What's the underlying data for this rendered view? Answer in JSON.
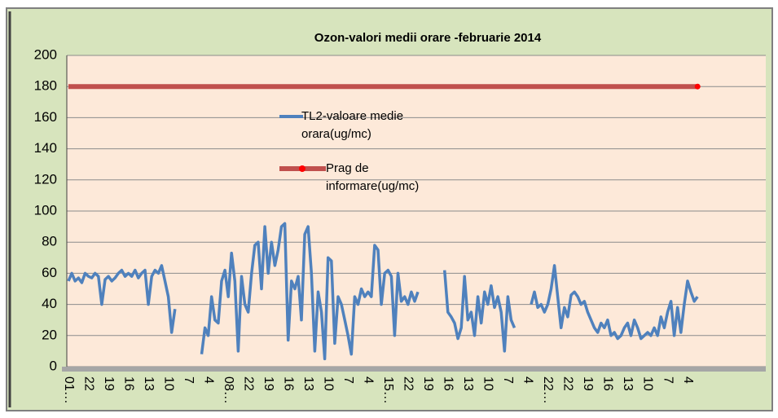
{
  "chart_data": {
    "type": "line",
    "title": "Ozon-valori medii orare -februarie 2014",
    "categories": [
      "01…",
      null,
      null,
      null,
      null,
      null,
      "22",
      null,
      null,
      null,
      null,
      null,
      "19",
      null,
      null,
      null,
      null,
      null,
      "16",
      null,
      null,
      null,
      null,
      null,
      "13",
      null,
      null,
      null,
      null,
      null,
      "10",
      null,
      null,
      null,
      null,
      null,
      "7",
      null,
      null,
      null,
      null,
      null,
      "4",
      null,
      null,
      null,
      null,
      null,
      "08…",
      null,
      null,
      null,
      null,
      null,
      "22",
      null,
      null,
      null,
      null,
      null,
      "19",
      null,
      null,
      null,
      null,
      null,
      "16",
      null,
      null,
      null,
      null,
      null,
      "13",
      null,
      null,
      null,
      null,
      null,
      "10",
      null,
      null,
      null,
      null,
      null,
      "7",
      null,
      null,
      null,
      null,
      null,
      "4",
      null,
      null,
      null,
      null,
      null,
      "15…",
      null,
      null,
      null,
      null,
      null,
      "22",
      null,
      null,
      null,
      null,
      null,
      "19",
      null,
      null,
      null,
      null,
      null,
      "16",
      null,
      null,
      null,
      null,
      null,
      "13",
      null,
      null,
      null,
      null,
      null,
      "10",
      null,
      null,
      null,
      null,
      null,
      "7",
      null,
      null,
      null,
      null,
      null,
      "4",
      null,
      null,
      null,
      null,
      null,
      "22…",
      null,
      null,
      null,
      null,
      null,
      "22",
      null,
      null,
      null,
      null,
      null,
      "19",
      null,
      null,
      null,
      null,
      null,
      "16",
      null,
      null,
      null,
      null,
      null,
      "13",
      null,
      null,
      null,
      null,
      null,
      "10",
      null,
      null,
      null,
      null,
      null,
      "7",
      null,
      null,
      null,
      null,
      null,
      "4",
      null,
      null,
      null,
      null,
      null,
      null,
      null,
      null,
      null,
      null,
      null,
      null,
      null,
      null,
      null,
      null,
      null,
      null,
      null,
      null,
      null,
      null,
      null
    ],
    "series": [
      {
        "name": "TL2-valoare medie orara(ug/mc)",
        "color": "#4f81bd",
        "values": [
          55,
          60,
          55,
          57,
          54,
          60,
          58,
          57,
          60,
          58,
          40,
          56,
          58,
          55,
          57,
          60,
          62,
          58,
          60,
          58,
          62,
          57,
          60,
          62,
          40,
          58,
          62,
          60,
          65,
          55,
          45,
          22,
          37,
          null,
          null,
          null,
          null,
          null,
          null,
          null,
          8,
          25,
          20,
          45,
          30,
          28,
          55,
          62,
          45,
          73,
          55,
          10,
          58,
          40,
          35,
          60,
          78,
          80,
          50,
          90,
          60,
          80,
          65,
          75,
          90,
          92,
          17,
          55,
          50,
          58,
          30,
          85,
          90,
          60,
          10,
          48,
          35,
          5,
          70,
          68,
          15,
          45,
          40,
          30,
          20,
          8,
          45,
          40,
          50,
          45,
          48,
          45,
          78,
          75,
          40,
          60,
          62,
          58,
          20,
          60,
          42,
          45,
          40,
          48,
          42,
          48,
          null,
          null,
          null,
          null,
          null,
          null,
          null,
          62,
          35,
          32,
          28,
          18,
          25,
          58,
          30,
          35,
          20,
          45,
          28,
          48,
          40,
          52,
          38,
          45,
          35,
          10,
          45,
          30,
          25,
          null,
          null,
          null,
          null,
          40,
          48,
          38,
          40,
          35,
          40,
          50,
          65,
          45,
          25,
          38,
          32,
          46,
          48,
          45,
          40,
          42,
          35,
          30,
          25,
          22,
          28,
          25,
          30,
          20,
          22,
          18,
          20,
          25,
          28,
          20,
          30,
          25,
          18,
          20,
          22,
          20,
          25,
          20,
          32,
          25,
          35,
          42,
          20,
          38,
          22,
          40,
          55,
          48,
          42,
          45,
          null,
          null,
          null,
          null,
          null,
          null,
          null,
          null,
          null,
          null,
          null,
          null,
          null,
          null,
          null,
          null,
          null,
          null,
          null,
          null
        ]
      },
      {
        "name": "Prag de informare(ug/mc)",
        "color": "#c0504d",
        "values": [
          180,
          180,
          180,
          180,
          180,
          180,
          180,
          180,
          180,
          180,
          180,
          180,
          180,
          180,
          180,
          180,
          180,
          180,
          180,
          180,
          180,
          180,
          180,
          180,
          180,
          180,
          180,
          180,
          180,
          180,
          180,
          180,
          180,
          180,
          180,
          180,
          180,
          180,
          180,
          180,
          180,
          180,
          180,
          180,
          180,
          180,
          180,
          180,
          180,
          180,
          180,
          180,
          180,
          180,
          180,
          180,
          180,
          180,
          180,
          180,
          180,
          180,
          180,
          180,
          180,
          180,
          180,
          180,
          180,
          180,
          180,
          180,
          180,
          180,
          180,
          180,
          180,
          180,
          180,
          180,
          180,
          180,
          180,
          180,
          180,
          180,
          180,
          180,
          180,
          180,
          180,
          180,
          180,
          180,
          180,
          180,
          180,
          180,
          180,
          180,
          180,
          180,
          180,
          180,
          180,
          180,
          180,
          180,
          180,
          180,
          180,
          180,
          180,
          180,
          180,
          180,
          180,
          180,
          180,
          180,
          180,
          180,
          180,
          180,
          180,
          180,
          180,
          180,
          180,
          180,
          180,
          180,
          180,
          180,
          180,
          180,
          180,
          180,
          180,
          180,
          180,
          180,
          180,
          180,
          180,
          180,
          180,
          180,
          180,
          180,
          180,
          180,
          180,
          180,
          180,
          180,
          180,
          180,
          180,
          180,
          180,
          180,
          180,
          180,
          180,
          180,
          180,
          180,
          180,
          180,
          180,
          180,
          180,
          180,
          180,
          180,
          180,
          180,
          180,
          180,
          180,
          180,
          180,
          180,
          180,
          180,
          180,
          180,
          180,
          180,
          null,
          null,
          null,
          null,
          null,
          null,
          null,
          null,
          null,
          null,
          null,
          null,
          null,
          null,
          null,
          null,
          null,
          null,
          null,
          null
        ]
      }
    ],
    "ylim": [
      0,
      200
    ],
    "yticks": [
      0,
      20,
      40,
      60,
      80,
      100,
      120,
      140,
      160,
      180,
      200
    ],
    "grid": true
  }
}
